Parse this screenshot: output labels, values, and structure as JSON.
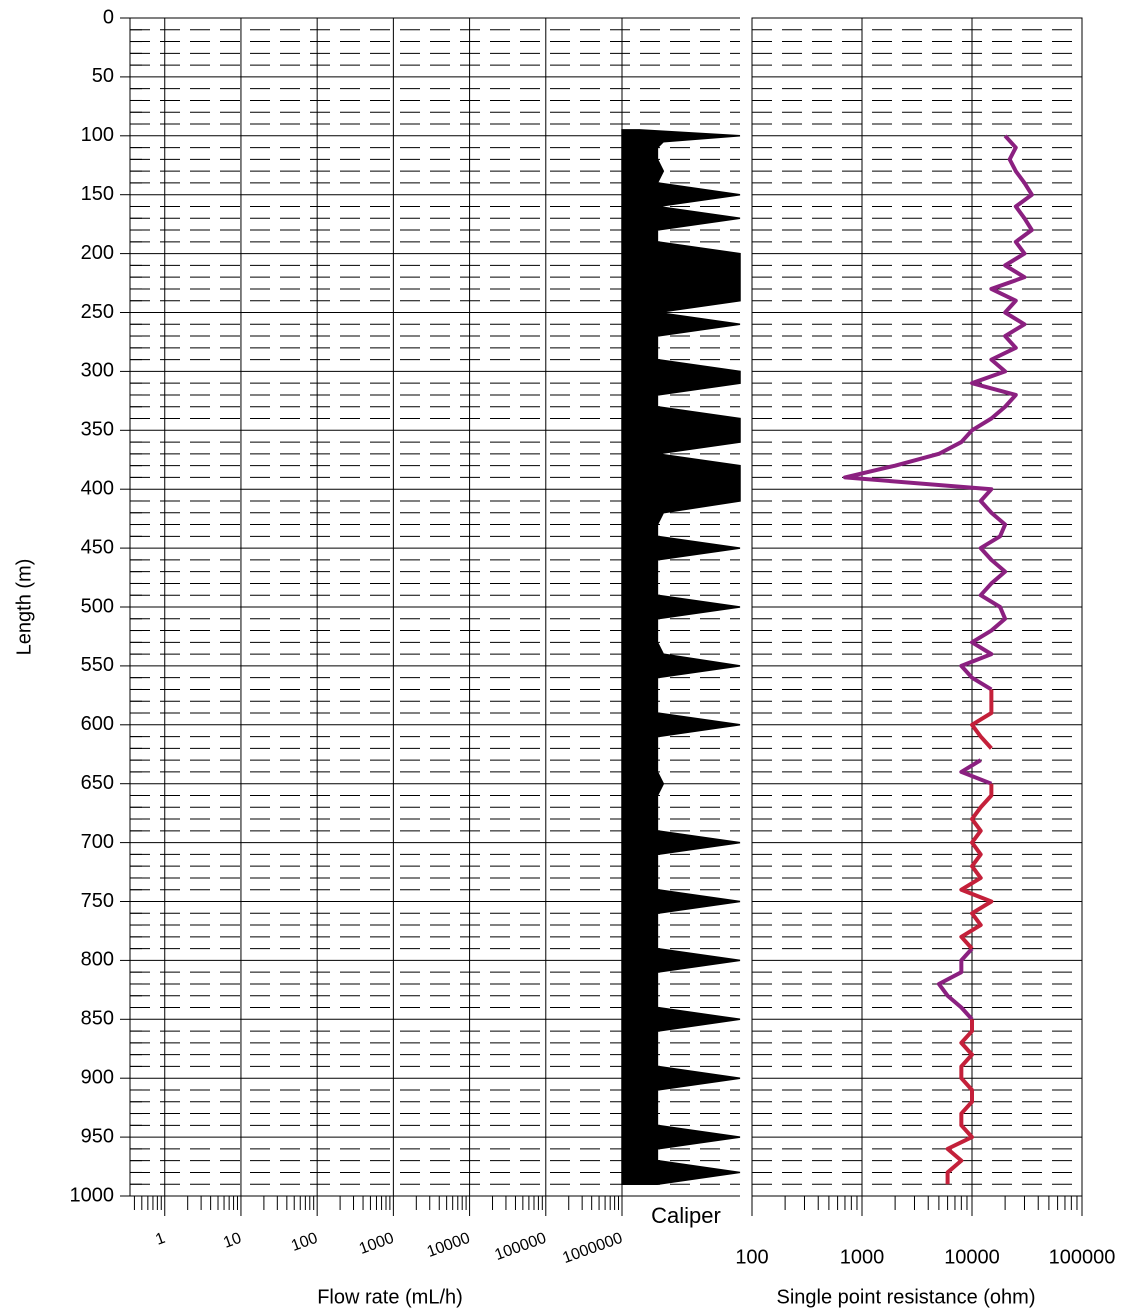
{
  "chart_data": {
    "type": "well-log",
    "y_label": "Length (m)",
    "ylim": [
      0,
      1000
    ],
    "yticks": [
      0,
      50,
      100,
      150,
      200,
      250,
      300,
      350,
      400,
      450,
      500,
      550,
      600,
      650,
      700,
      750,
      800,
      850,
      900,
      950,
      1000
    ],
    "grid": true,
    "flow": {
      "x_label": "Flow rate (mL/h)",
      "log": true,
      "xlim": [
        0.35,
        1000000
      ],
      "xticks": [
        1,
        10,
        100,
        1000,
        10000,
        100000,
        1000000
      ]
    },
    "caliper": {
      "label": "Caliper",
      "color": "#000000",
      "xlim": [
        0,
        1
      ],
      "depth": [
        95,
        100,
        105,
        110,
        120,
        130,
        140,
        150,
        160,
        170,
        180,
        190,
        200,
        210,
        220,
        230,
        240,
        250,
        260,
        270,
        280,
        290,
        300,
        310,
        320,
        330,
        340,
        350,
        360,
        370,
        380,
        390,
        400,
        410,
        420,
        430,
        440,
        450,
        460,
        470,
        480,
        490,
        500,
        510,
        520,
        530,
        540,
        550,
        560,
        570,
        580,
        590,
        600,
        610,
        620,
        630,
        640,
        650,
        660,
        670,
        680,
        690,
        700,
        710,
        720,
        730,
        740,
        750,
        760,
        770,
        780,
        790,
        800,
        810,
        820,
        830,
        840,
        850,
        860,
        870,
        880,
        890,
        900,
        910,
        920,
        930,
        940,
        950,
        960,
        970,
        980,
        990
      ],
      "values": [
        0.15,
        1.0,
        0.35,
        0.3,
        0.3,
        0.35,
        0.3,
        1.0,
        0.3,
        1.0,
        0.3,
        0.3,
        1.0,
        1.0,
        1.0,
        1.0,
        1.0,
        0.3,
        1.0,
        0.3,
        0.3,
        0.3,
        1.0,
        1.0,
        0.3,
        0.3,
        1.0,
        1.0,
        1.0,
        0.3,
        1.0,
        1.0,
        1.0,
        1.0,
        0.35,
        0.3,
        0.3,
        1.0,
        0.3,
        0.3,
        0.3,
        0.3,
        1.0,
        0.3,
        0.3,
        0.3,
        0.35,
        1.0,
        0.3,
        0.3,
        0.3,
        0.3,
        1.0,
        0.3,
        0.3,
        0.3,
        0.3,
        0.35,
        0.3,
        0.3,
        0.3,
        0.3,
        1.0,
        0.3,
        0.3,
        0.3,
        0.3,
        1.0,
        0.3,
        0.3,
        0.3,
        0.3,
        1.0,
        0.3,
        0.3,
        0.3,
        0.3,
        1.0,
        0.3,
        0.3,
        0.3,
        0.3,
        1.0,
        0.3,
        0.3,
        0.3,
        0.3,
        1.0,
        0.3,
        0.3,
        1.0,
        0.3
      ]
    },
    "resistance": {
      "x_label": "Single point resistance (ohm)",
      "log": true,
      "xlim": [
        100,
        100000
      ],
      "xticks": [
        100,
        1000,
        10000,
        100000
      ],
      "depth": [
        100,
        110,
        120,
        130,
        140,
        150,
        160,
        170,
        180,
        190,
        200,
        210,
        220,
        230,
        240,
        250,
        260,
        270,
        280,
        290,
        300,
        310,
        320,
        330,
        340,
        350,
        360,
        370,
        380,
        390,
        400,
        410,
        420,
        430,
        440,
        450,
        460,
        470,
        480,
        490,
        500,
        510,
        520,
        530,
        540,
        550,
        560,
        570,
        580,
        590,
        600,
        610,
        620,
        630,
        640,
        650,
        660,
        670,
        680,
        690,
        700,
        710,
        720,
        730,
        740,
        750,
        760,
        770,
        780,
        790,
        800,
        810,
        820,
        830,
        840,
        850,
        860,
        870,
        880,
        890,
        900,
        910,
        920,
        930,
        940,
        950,
        960,
        970,
        980,
        990
      ],
      "series": [
        {
          "color": "#8b2080",
          "values": [
            20000,
            25000,
            22000,
            25000,
            30000,
            35000,
            25000,
            30000,
            35000,
            25000,
            30000,
            20000,
            30000,
            15000,
            25000,
            20000,
            30000,
            20000,
            25000,
            15000,
            20000,
            10000,
            25000,
            20000,
            15000,
            10000,
            8000,
            5000,
            2000,
            700,
            15000,
            12000,
            15000,
            20000,
            18000,
            12000,
            15000,
            20000,
            15000,
            12000,
            18000,
            20000,
            15000,
            10000,
            15000,
            8000,
            10000,
            15000,
            null,
            null,
            null,
            null,
            null,
            12000,
            8000,
            15000,
            null,
            null,
            null,
            null,
            null,
            null,
            null,
            null,
            null,
            null,
            null,
            null,
            null,
            10000,
            8000,
            8000,
            5000,
            6000,
            8000,
            10000,
            null,
            null,
            null,
            null,
            null,
            null,
            null,
            null,
            null,
            null,
            null,
            null,
            null,
            null
          ]
        },
        {
          "color": "#c4203a",
          "values": [
            null,
            null,
            null,
            null,
            null,
            null,
            null,
            null,
            null,
            null,
            null,
            null,
            null,
            null,
            null,
            null,
            null,
            null,
            null,
            null,
            null,
            null,
            null,
            null,
            null,
            null,
            null,
            null,
            null,
            null,
            null,
            null,
            null,
            null,
            null,
            null,
            null,
            null,
            null,
            null,
            null,
            null,
            null,
            null,
            null,
            null,
            null,
            15000,
            15000,
            15000,
            10000,
            12000,
            15000,
            null,
            null,
            15000,
            15000,
            12000,
            10000,
            12000,
            10000,
            12000,
            10000,
            12000,
            8000,
            15000,
            10000,
            12000,
            8000,
            10000,
            null,
            null,
            null,
            null,
            null,
            10000,
            10000,
            8000,
            10000,
            8000,
            8000,
            10000,
            10000,
            8000,
            8000,
            10000,
            6000,
            8000,
            6000,
            6000
          ]
        }
      ]
    }
  }
}
